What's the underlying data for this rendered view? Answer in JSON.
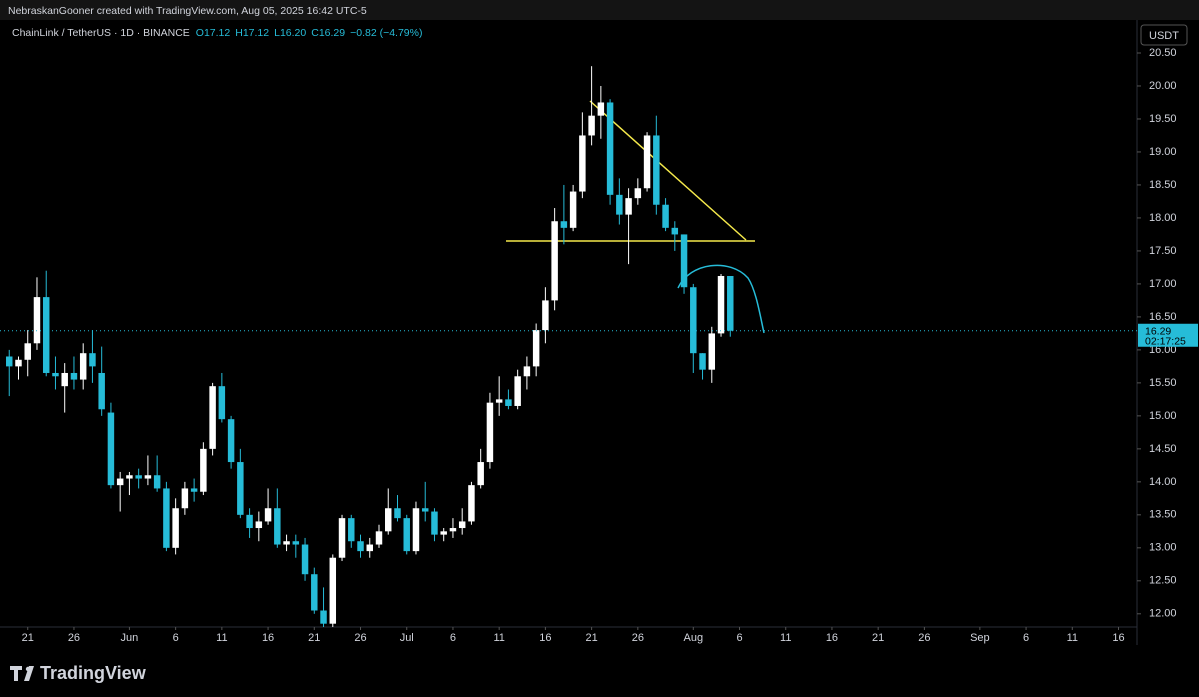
{
  "chart_data": {
    "type": "candlestick",
    "watermark": "NebraskanGooner created with TradingView.com, Aug 05, 2025 16:42 UTC-5",
    "title": "ChainLink / TetherUS · 1D · BINANCE",
    "ohlc_legend": [
      "O17.12",
      "H17.12",
      "L16.20",
      "C16.29"
    ],
    "change": "−0.82 (−4.79%)",
    "currency": "USDT",
    "last_price": 16.29,
    "countdown": "02:17:25",
    "brand": "TradingView",
    "up_color": "#ffffff",
    "down_color": "#26bcd8",
    "x": [
      "2025-05-19",
      "2025-05-20",
      "2025-05-21",
      "2025-05-22",
      "2025-05-23",
      "2025-05-24",
      "2025-05-25",
      "2025-05-26",
      "2025-05-27",
      "2025-05-28",
      "2025-05-29",
      "2025-05-30",
      "2025-05-31",
      "2025-06-01",
      "2025-06-02",
      "2025-06-03",
      "2025-06-04",
      "2025-06-05",
      "2025-06-06",
      "2025-06-07",
      "2025-06-08",
      "2025-06-09",
      "2025-06-10",
      "2025-06-11",
      "2025-06-12",
      "2025-06-13",
      "2025-06-14",
      "2025-06-15",
      "2025-06-16",
      "2025-06-17",
      "2025-06-18",
      "2025-06-19",
      "2025-06-20",
      "2025-06-21",
      "2025-06-22",
      "2025-06-23",
      "2025-06-24",
      "2025-06-25",
      "2025-06-26",
      "2025-06-27",
      "2025-06-28",
      "2025-06-29",
      "2025-06-30",
      "2025-07-01",
      "2025-07-02",
      "2025-07-03",
      "2025-07-04",
      "2025-07-05",
      "2025-07-06",
      "2025-07-07",
      "2025-07-08",
      "2025-07-09",
      "2025-07-10",
      "2025-07-11",
      "2025-07-12",
      "2025-07-13",
      "2025-07-14",
      "2025-07-15",
      "2025-07-16",
      "2025-07-17",
      "2025-07-18",
      "2025-07-19",
      "2025-07-20",
      "2025-07-21",
      "2025-07-22",
      "2025-07-23",
      "2025-07-24",
      "2025-07-25",
      "2025-07-26",
      "2025-07-27",
      "2025-07-28",
      "2025-07-29",
      "2025-07-30",
      "2025-07-31",
      "2025-08-01",
      "2025-08-02",
      "2025-08-03",
      "2025-08-04",
      "2025-08-05"
    ],
    "open": [
      15.9,
      15.75,
      15.85,
      16.1,
      16.8,
      15.65,
      15.45,
      15.65,
      15.55,
      15.95,
      15.65,
      15.05,
      13.95,
      14.05,
      14.1,
      14.05,
      14.1,
      13.9,
      13.0,
      13.6,
      13.9,
      13.85,
      14.5,
      15.45,
      14.95,
      14.3,
      13.5,
      13.3,
      13.4,
      13.6,
      13.05,
      13.1,
      13.05,
      12.6,
      12.05,
      11.85,
      12.85,
      13.45,
      13.1,
      12.95,
      13.05,
      13.25,
      13.6,
      13.45,
      12.95,
      13.6,
      13.55,
      13.2,
      13.25,
      13.3,
      13.4,
      13.95,
      14.3,
      15.2,
      15.25,
      15.15,
      15.6,
      15.75,
      16.3,
      16.75,
      17.95,
      17.85,
      18.4,
      19.25,
      19.55,
      19.75,
      18.35,
      18.05,
      18.3,
      18.45,
      19.25,
      18.2,
      17.85,
      17.75,
      16.95,
      15.95,
      15.7,
      16.25,
      17.12
    ],
    "high": [
      16.0,
      15.9,
      16.3,
      17.1,
      17.2,
      15.9,
      15.8,
      15.9,
      16.1,
      16.3,
      16.05,
      15.2,
      14.15,
      14.15,
      14.2,
      14.4,
      14.4,
      14.0,
      13.75,
      14.0,
      14.05,
      14.6,
      15.5,
      15.65,
      15.0,
      14.5,
      13.6,
      13.55,
      13.9,
      13.9,
      13.2,
      13.2,
      13.15,
      12.7,
      12.4,
      12.9,
      13.5,
      13.5,
      13.2,
      13.15,
      13.35,
      13.9,
      13.8,
      13.5,
      13.7,
      14.0,
      13.6,
      13.3,
      13.45,
      13.6,
      14.0,
      14.5,
      15.35,
      15.6,
      15.4,
      15.7,
      15.9,
      16.4,
      16.95,
      18.15,
      18.5,
      18.5,
      19.6,
      20.3,
      20.0,
      19.8,
      18.6,
      18.45,
      18.6,
      19.3,
      19.55,
      18.3,
      17.95,
      17.75,
      17.0,
      15.95,
      16.35,
      17.15,
      17.12
    ],
    "low": [
      15.3,
      15.55,
      15.6,
      16.0,
      15.6,
      15.4,
      15.05,
      15.4,
      15.4,
      15.5,
      15.0,
      13.9,
      13.55,
      13.8,
      13.9,
      13.95,
      13.85,
      12.95,
      12.9,
      13.5,
      13.7,
      13.8,
      14.4,
      14.9,
      14.2,
      13.45,
      13.15,
      13.1,
      13.35,
      13.0,
      12.95,
      12.85,
      12.5,
      12.0,
      11.8,
      11.8,
      12.8,
      13.0,
      12.85,
      12.85,
      13.0,
      13.2,
      13.4,
      12.9,
      12.9,
      13.4,
      13.1,
      13.1,
      13.15,
      13.2,
      13.35,
      13.9,
      14.2,
      15.0,
      15.1,
      15.1,
      15.4,
      15.6,
      16.1,
      16.6,
      17.6,
      17.8,
      18.3,
      19.1,
      19.2,
      18.2,
      17.9,
      17.3,
      18.2,
      18.4,
      18.05,
      17.8,
      17.5,
      16.85,
      15.65,
      15.55,
      15.5,
      16.2,
      16.2
    ],
    "close": [
      15.75,
      15.85,
      16.1,
      16.8,
      15.65,
      15.6,
      15.65,
      15.55,
      15.95,
      15.75,
      15.1,
      13.95,
      14.05,
      14.1,
      14.05,
      14.1,
      13.9,
      13.0,
      13.6,
      13.9,
      13.85,
      14.5,
      15.45,
      14.95,
      14.3,
      13.5,
      13.3,
      13.4,
      13.6,
      13.05,
      13.1,
      13.05,
      12.6,
      12.05,
      11.85,
      12.85,
      13.45,
      13.1,
      12.95,
      13.05,
      13.25,
      13.6,
      13.45,
      12.95,
      13.6,
      13.55,
      13.2,
      13.25,
      13.3,
      13.4,
      13.95,
      14.3,
      15.2,
      15.25,
      15.15,
      15.6,
      15.75,
      16.3,
      16.75,
      17.95,
      17.85,
      18.4,
      19.25,
      19.55,
      19.75,
      18.35,
      18.05,
      18.3,
      18.45,
      19.25,
      18.2,
      17.85,
      17.75,
      16.95,
      15.95,
      15.7,
      16.25,
      17.12,
      16.29
    ],
    "ylim": [
      11.8,
      21.0
    ],
    "yticks": [
      {
        "value": 12,
        "label": "12.00"
      },
      {
        "value": 12.5,
        "label": "12.50"
      },
      {
        "value": 13,
        "label": "13.00"
      },
      {
        "value": 13.5,
        "label": "13.50"
      },
      {
        "value": 14,
        "label": "14.00"
      },
      {
        "value": 14.5,
        "label": "14.50"
      },
      {
        "value": 15,
        "label": "15.00"
      },
      {
        "value": 15.5,
        "label": "15.50"
      },
      {
        "value": 16,
        "label": "16.00"
      },
      {
        "value": 16.5,
        "label": "16.50"
      },
      {
        "value": 17,
        "label": "17.00"
      },
      {
        "value": 17.5,
        "label": "17.50"
      },
      {
        "value": 18,
        "label": "18.00"
      },
      {
        "value": 18.5,
        "label": "18.50"
      },
      {
        "value": 19,
        "label": "19.00"
      },
      {
        "value": 19.5,
        "label": "19.50"
      },
      {
        "value": 20,
        "label": "20.00"
      },
      {
        "value": 20.5,
        "label": "20.50"
      }
    ],
    "xlim": [
      "2025-05-18",
      "2025-09-18"
    ],
    "xticks": [
      {
        "value": "2025-05-21",
        "label": "21"
      },
      {
        "value": "2025-05-26",
        "label": "26"
      },
      {
        "value": "2025-06-01",
        "label": "Jun"
      },
      {
        "value": "2025-06-06",
        "label": "6"
      },
      {
        "value": "2025-06-11",
        "label": "11"
      },
      {
        "value": "2025-06-16",
        "label": "16"
      },
      {
        "value": "2025-06-21",
        "label": "21"
      },
      {
        "value": "2025-06-26",
        "label": "26"
      },
      {
        "value": "2025-07-01",
        "label": "Jul"
      },
      {
        "value": "2025-07-06",
        "label": "6"
      },
      {
        "value": "2025-07-11",
        "label": "11"
      },
      {
        "value": "2025-07-16",
        "label": "16"
      },
      {
        "value": "2025-07-21",
        "label": "21"
      },
      {
        "value": "2025-07-26",
        "label": "26"
      },
      {
        "value": "2025-08-01",
        "label": "Aug"
      },
      {
        "value": "2025-08-06",
        "label": "6"
      },
      {
        "value": "2025-08-11",
        "label": "11"
      },
      {
        "value": "2025-08-16",
        "label": "16"
      },
      {
        "value": "2025-08-21",
        "label": "21"
      },
      {
        "value": "2025-08-26",
        "label": "26"
      },
      {
        "value": "2025-09-01",
        "label": "Sep"
      },
      {
        "value": "2025-09-06",
        "label": "6"
      },
      {
        "value": "2025-09-11",
        "label": "11"
      },
      {
        "value": "2025-09-16",
        "label": "16"
      }
    ]
  }
}
